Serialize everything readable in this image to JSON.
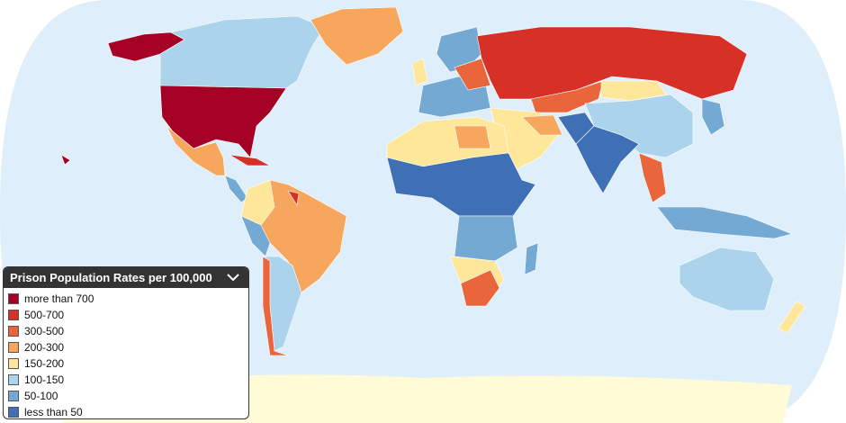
{
  "legend": {
    "title": "Prison Population Rates per 100,000",
    "items": [
      {
        "label": "more than 700",
        "color": "#a50026"
      },
      {
        "label": "500-700",
        "color": "#d73027"
      },
      {
        "label": "300-500",
        "color": "#e9653b"
      },
      {
        "label": "200-300",
        "color": "#f6a75d"
      },
      {
        "label": "150-200",
        "color": "#fee69a"
      },
      {
        "label": "100-150",
        "color": "#abd4ec"
      },
      {
        "label": "50-100",
        "color": "#74a9d4"
      },
      {
        "label": "less than 50",
        "color": "#3f6fb5"
      }
    ]
  }
}
